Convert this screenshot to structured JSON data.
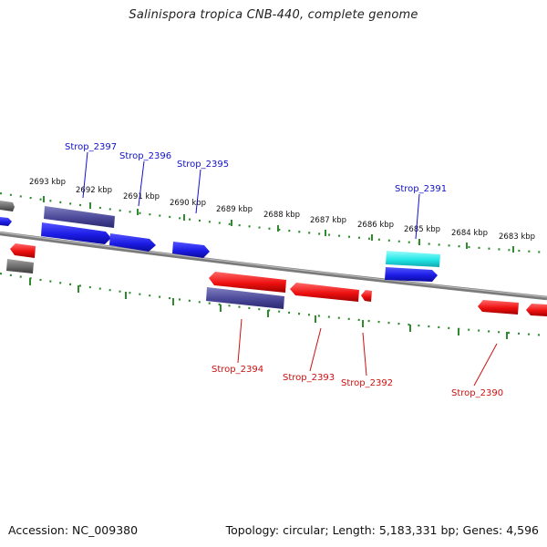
{
  "title": "Salinispora tropica CNB-440, complete genome",
  "footer": {
    "accession": "Accession: NC_009380",
    "summary": "Topology: circular; Length: 5,183,331 bp; Genes: 4,596"
  },
  "colors": {
    "backbone": "#7a7a7a",
    "tick": "#2e8b2e",
    "forward_label": "#1010c8",
    "reverse_label": "#cc1010",
    "gene_blue": "#1c1ce6",
    "gene_navy": "#4a4898",
    "gene_red": "#ee1010",
    "gene_cyan": "#22e6e6",
    "gene_gray": "#6a6a6a"
  },
  "kbp_labels": [
    "2693 kbp",
    "2692 kbp",
    "2691 kbp",
    "2690 kbp",
    "2689 kbp",
    "2688 kbp",
    "2687 kbp",
    "2686 kbp",
    "2685 kbp",
    "2684 kbp",
    "2683 kbp"
  ],
  "forward_gene_labels": [
    "Strop_2397",
    "Strop_2396",
    "Strop_2395",
    "Strop_2391"
  ],
  "reverse_gene_labels": [
    "Strop_2394",
    "Strop_2393",
    "Strop_2392",
    "Strop_2390"
  ]
}
